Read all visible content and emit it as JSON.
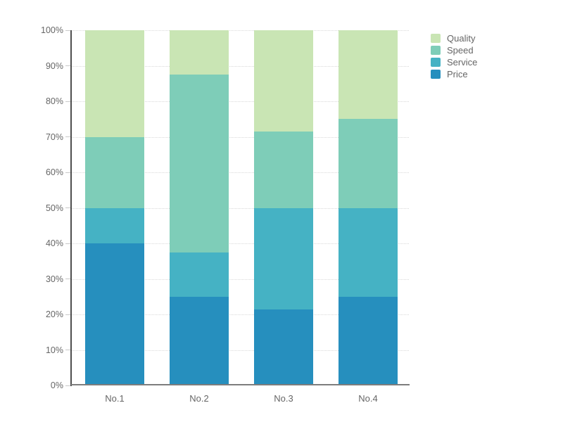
{
  "chart_data": {
    "type": "bar",
    "variant": "percent-stacked-column",
    "title": "",
    "categories": [
      "No.1",
      "No.2",
      "No.3",
      "No.4"
    ],
    "series": [
      {
        "name": "Quality",
        "color": "#c9e5b4",
        "values": [
          30,
          12.5,
          28.6,
          25
        ]
      },
      {
        "name": "Speed",
        "color": "#7ecdb8",
        "values": [
          20,
          50,
          21.4,
          25
        ]
      },
      {
        "name": "Service",
        "color": "#45b2c4",
        "values": [
          10,
          12.5,
          28.6,
          25
        ]
      },
      {
        "name": "Price",
        "color": "#268fbe",
        "values": [
          40,
          25,
          21.4,
          25
        ]
      }
    ],
    "stack_order_bottom_to_top": [
      "Price",
      "Service",
      "Speed",
      "Quality"
    ],
    "y_ticks": [
      "0%",
      "10%",
      "20%",
      "30%",
      "40%",
      "50%",
      "60%",
      "70%",
      "80%",
      "90%",
      "100%"
    ],
    "ylim": [
      0,
      100
    ],
    "ylabel": "",
    "xlabel": "",
    "grid": "dotted-horizontal",
    "legend_position": "top-right",
    "legend": [
      "Quality",
      "Speed",
      "Service",
      "Price"
    ]
  },
  "style": {
    "background": "#ffffff",
    "axis_text_color": "#666666",
    "y_axis_line_color": "#4f4f4f",
    "x_axis_line_color": "#7d7d7d",
    "tick_color": "#c9c9c9",
    "grid_color": "#d9d9d9"
  }
}
